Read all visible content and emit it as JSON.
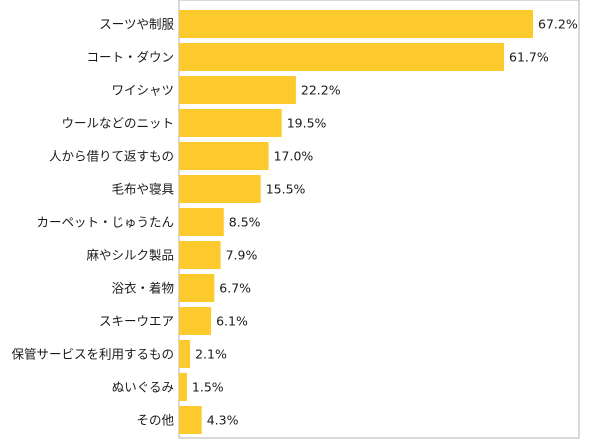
{
  "chart_data": {
    "type": "bar",
    "orientation": "horizontal",
    "title": "",
    "xlabel": "",
    "ylabel": "",
    "unit": "%",
    "xlim": [
      0,
      80
    ],
    "grid": false,
    "legend": "none",
    "colors": {
      "bar": "#fdca2e",
      "axis": "#b3b3b3",
      "text": "#1a1a1a"
    },
    "categories": [
      "スーツや制服",
      "コート・ダウン",
      "ワイシャツ",
      "ウールなどのニット",
      "人から借りて返すもの",
      "毛布や寝具",
      "カーペット・じゅうたん",
      "麻やシルク製品",
      "浴衣・着物",
      "スキーウエア",
      "保管サービスを利用するもの",
      "ぬいぐるみ",
      "その他"
    ],
    "values": [
      67.2,
      61.7,
      22.2,
      19.5,
      17.0,
      15.5,
      8.5,
      7.9,
      6.7,
      6.1,
      2.1,
      1.5,
      4.3
    ],
    "value_labels": [
      "67.2%",
      "61.7%",
      "22.2%",
      "19.5%",
      "17.0%",
      "15.5%",
      "8.5%",
      "7.9%",
      "6.7%",
      "6.1%",
      "2.1%",
      "1.5%",
      "4.3%"
    ]
  }
}
